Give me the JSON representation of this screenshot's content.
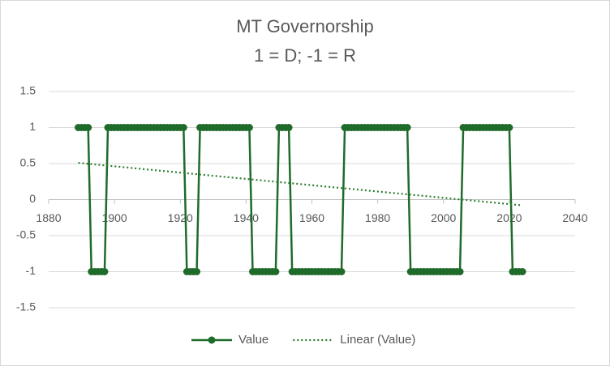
{
  "chart_data": {
    "type": "line",
    "title": "MT Governorship",
    "subtitle": "1 = D; -1 = R",
    "xlim": [
      1880,
      2040
    ],
    "xticks": [
      1880,
      1900,
      1920,
      1940,
      1960,
      1980,
      2000,
      2020,
      2040
    ],
    "ylim": [
      -1.5,
      1.5
    ],
    "yticks": [
      -1.5,
      -1,
      -0.5,
      0,
      0.5,
      1,
      1.5
    ],
    "grid": true,
    "legend": "bottom",
    "series": [
      {
        "name": "Value",
        "color": "#1f6b2a",
        "marker": "circle",
        "line_style": "solid",
        "x": [
          1889,
          1890,
          1891,
          1892,
          1893,
          1894,
          1895,
          1896,
          1897,
          1898,
          1899,
          1900,
          1901,
          1902,
          1903,
          1904,
          1905,
          1906,
          1907,
          1908,
          1909,
          1910,
          1911,
          1912,
          1913,
          1914,
          1915,
          1916,
          1917,
          1918,
          1919,
          1920,
          1921,
          1922,
          1923,
          1924,
          1925,
          1926,
          1927,
          1928,
          1929,
          1930,
          1931,
          1932,
          1933,
          1934,
          1935,
          1936,
          1937,
          1938,
          1939,
          1940,
          1941,
          1942,
          1943,
          1944,
          1945,
          1946,
          1947,
          1948,
          1949,
          1950,
          1951,
          1952,
          1953,
          1954,
          1955,
          1956,
          1957,
          1958,
          1959,
          1960,
          1961,
          1962,
          1963,
          1964,
          1965,
          1966,
          1967,
          1968,
          1969,
          1970,
          1971,
          1972,
          1973,
          1974,
          1975,
          1976,
          1977,
          1978,
          1979,
          1980,
          1981,
          1982,
          1983,
          1984,
          1985,
          1986,
          1987,
          1988,
          1989,
          1990,
          1991,
          1992,
          1993,
          1994,
          1995,
          1996,
          1997,
          1998,
          1999,
          2000,
          2001,
          2002,
          2003,
          2004,
          2005,
          2006,
          2007,
          2008,
          2009,
          2010,
          2011,
          2012,
          2013,
          2014,
          2015,
          2016,
          2017,
          2018,
          2019,
          2020,
          2021,
          2022,
          2023,
          2024
        ],
        "values": [
          1,
          1,
          1,
          1,
          -1,
          -1,
          -1,
          -1,
          -1,
          1,
          1,
          1,
          1,
          1,
          1,
          1,
          1,
          1,
          1,
          1,
          1,
          1,
          1,
          1,
          1,
          1,
          1,
          1,
          1,
          1,
          1,
          1,
          1,
          -1,
          -1,
          -1,
          -1,
          1,
          1,
          1,
          1,
          1,
          1,
          1,
          1,
          1,
          1,
          1,
          1,
          1,
          1,
          1,
          1,
          -1,
          -1,
          -1,
          -1,
          -1,
          -1,
          -1,
          -1,
          1,
          1,
          1,
          1,
          -1,
          -1,
          -1,
          -1,
          -1,
          -1,
          -1,
          -1,
          -1,
          -1,
          -1,
          -1,
          -1,
          -1,
          -1,
          -1,
          1,
          1,
          1,
          1,
          1,
          1,
          1,
          1,
          1,
          1,
          1,
          1,
          1,
          1,
          1,
          1,
          1,
          1,
          1,
          1,
          -1,
          -1,
          -1,
          -1,
          -1,
          -1,
          -1,
          -1,
          -1,
          -1,
          -1,
          -1,
          -1,
          -1,
          -1,
          -1,
          1,
          1,
          1,
          1,
          1,
          1,
          1,
          1,
          1,
          1,
          1,
          1,
          1,
          1,
          1,
          -1,
          -1,
          -1,
          -1
        ]
      },
      {
        "name": "Linear (Value)",
        "color": "#2e7d32",
        "marker": "none",
        "line_style": "dotted",
        "x": [
          1889,
          2024
        ],
        "values": [
          0.51,
          -0.08
        ]
      }
    ]
  }
}
